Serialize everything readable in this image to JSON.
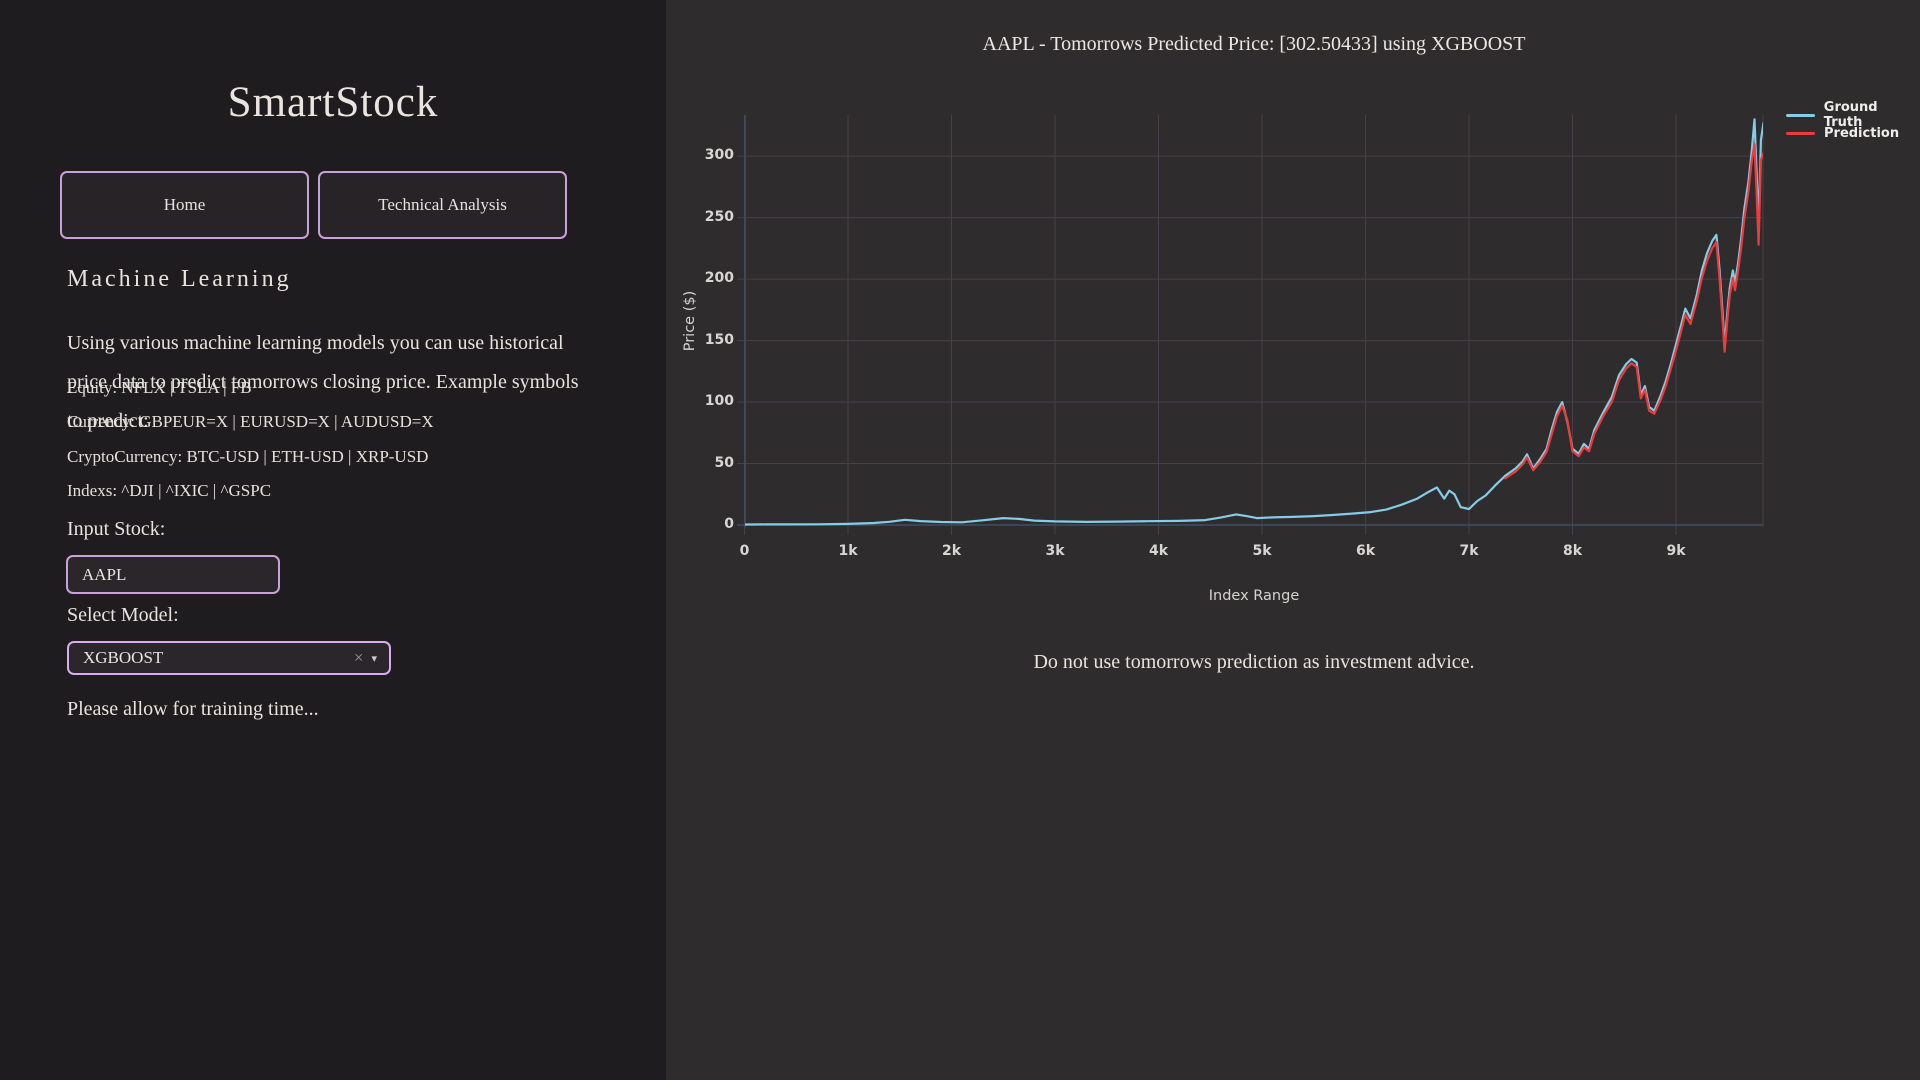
{
  "sidebar": {
    "title": "SmartStock",
    "nav": [
      {
        "label": "Home"
      },
      {
        "label": "Technical Analysis"
      }
    ],
    "section_heading": "Machine Learning",
    "description_lines": [
      "Using various machine learning models you can use historical",
      "price data to predict tomorrows closing price. Example symbols",
      "to predict:"
    ],
    "examples": [
      "Equity: NFLX | TSLA | FB",
      "Currency: GBPEUR=X | EURUSD=X | AUDUSD=X",
      "CryptoCurrency: BTC-USD | ETH-USD | XRP-USD",
      "Indexs: ^DJI | ^IXIC | ^GSPC"
    ],
    "input_stock_label": "Input Stock:",
    "input_stock_value": "AAPL",
    "select_model_label": "Select Model:",
    "select_model_value": "XGBOOST",
    "clear_icon": "×",
    "dropdown_icon": "▾",
    "training_note": "Please allow for training time..."
  },
  "main": {
    "disclaimer": "Do not use tomorrows prediction as investment advice."
  },
  "colors": {
    "accent_purple": "#c9a1d9",
    "select_accent": "#d8abf2",
    "ground_truth": "#85cce7",
    "prediction": "#ed3b3b",
    "gridline": "#454049",
    "axis_line": "#3f4f63"
  },
  "chart_data": {
    "type": "line",
    "title": "AAPL - Tomorrows Predicted Price: [302.50433] using XGBOOST",
    "xlabel": "Index Range",
    "ylabel": "Price ($)",
    "predicted_price": 302.50433,
    "model": "XGBOOST",
    "symbol": "AAPL",
    "grid": true,
    "legend_position": "top-right",
    "xlim": [
      0,
      9850
    ],
    "ylim": [
      -2,
      333
    ],
    "x_ticks": [
      {
        "value": 0,
        "label": "0"
      },
      {
        "value": 1000,
        "label": "1k"
      },
      {
        "value": 2000,
        "label": "2k"
      },
      {
        "value": 3000,
        "label": "3k"
      },
      {
        "value": 4000,
        "label": "4k"
      },
      {
        "value": 5000,
        "label": "5k"
      },
      {
        "value": 6000,
        "label": "6k"
      },
      {
        "value": 7000,
        "label": "7k"
      },
      {
        "value": 8000,
        "label": "8k"
      },
      {
        "value": 9000,
        "label": "9k"
      }
    ],
    "y_ticks": [
      {
        "value": 0,
        "label": "0"
      },
      {
        "value": 50,
        "label": "50"
      },
      {
        "value": 100,
        "label": "100"
      },
      {
        "value": 150,
        "label": "150"
      },
      {
        "value": 200,
        "label": "200"
      },
      {
        "value": 250,
        "label": "250"
      },
      {
        "value": 300,
        "label": "300"
      }
    ],
    "series": [
      {
        "name": "Ground Truth",
        "color": "#85cce7",
        "points": [
          [
            0,
            0.4
          ],
          [
            200,
            0.45
          ],
          [
            400,
            0.5
          ],
          [
            700,
            0.6
          ],
          [
            1000,
            0.9
          ],
          [
            1250,
            1.6
          ],
          [
            1400,
            2.6
          ],
          [
            1550,
            4.2
          ],
          [
            1700,
            3.2
          ],
          [
            1900,
            2.4
          ],
          [
            2100,
            2.2
          ],
          [
            2300,
            3.8
          ],
          [
            2500,
            5.6
          ],
          [
            2650,
            5.0
          ],
          [
            2800,
            3.6
          ],
          [
            3000,
            2.9
          ],
          [
            3300,
            2.5
          ],
          [
            3600,
            2.8
          ],
          [
            3900,
            3.1
          ],
          [
            4200,
            3.3
          ],
          [
            4450,
            4.0
          ],
          [
            4600,
            6.0
          ],
          [
            4750,
            8.6
          ],
          [
            4850,
            7.2
          ],
          [
            4950,
            5.6
          ],
          [
            5100,
            6.2
          ],
          [
            5300,
            6.6
          ],
          [
            5500,
            7.2
          ],
          [
            5700,
            8.2
          ],
          [
            5900,
            9.4
          ],
          [
            6050,
            10.5
          ],
          [
            6200,
            12.5
          ],
          [
            6350,
            16.5
          ],
          [
            6500,
            21.5
          ],
          [
            6600,
            26.5
          ],
          [
            6690,
            30.5
          ],
          [
            6760,
            21.5
          ],
          [
            6810,
            28
          ],
          [
            6860,
            25
          ],
          [
            6920,
            14.5
          ],
          [
            7000,
            13
          ],
          [
            7080,
            19.5
          ],
          [
            7160,
            24
          ],
          [
            7250,
            32
          ],
          [
            7350,
            40
          ],
          [
            7450,
            46
          ],
          [
            7520,
            52
          ],
          [
            7560,
            57.5
          ],
          [
            7620,
            46
          ],
          [
            7690,
            54
          ],
          [
            7750,
            62
          ],
          [
            7800,
            78
          ],
          [
            7850,
            92
          ],
          [
            7900,
            100
          ],
          [
            7950,
            84
          ],
          [
            8000,
            62
          ],
          [
            8060,
            58
          ],
          [
            8110,
            66
          ],
          [
            8160,
            62
          ],
          [
            8210,
            77
          ],
          [
            8300,
            92
          ],
          [
            8380,
            104
          ],
          [
            8450,
            122
          ],
          [
            8520,
            131
          ],
          [
            8570,
            135
          ],
          [
            8620,
            132
          ],
          [
            8660,
            106
          ],
          [
            8700,
            113
          ],
          [
            8740,
            96
          ],
          [
            8790,
            93
          ],
          [
            8850,
            105
          ],
          [
            8900,
            117
          ],
          [
            8950,
            131
          ],
          [
            9000,
            147
          ],
          [
            9050,
            163
          ],
          [
            9090,
            176
          ],
          [
            9140,
            168
          ],
          [
            9200,
            187
          ],
          [
            9250,
            207
          ],
          [
            9300,
            221
          ],
          [
            9350,
            231
          ],
          [
            9390,
            236
          ],
          [
            9420,
            208
          ],
          [
            9450,
            172
          ],
          [
            9470,
            147
          ],
          [
            9500,
            177
          ],
          [
            9520,
            193
          ],
          [
            9550,
            207
          ],
          [
            9570,
            197
          ],
          [
            9600,
            213
          ],
          [
            9630,
            233
          ],
          [
            9660,
            257
          ],
          [
            9700,
            279
          ],
          [
            9730,
            303
          ],
          [
            9758,
            330
          ],
          [
            9778,
            289
          ],
          [
            9798,
            243
          ],
          [
            9820,
            313
          ],
          [
            9845,
            327
          ]
        ]
      },
      {
        "name": "Prediction",
        "color": "#ed3b3b",
        "points": [
          [
            7350,
            38
          ],
          [
            7450,
            43.5
          ],
          [
            7520,
            49.5
          ],
          [
            7560,
            55
          ],
          [
            7620,
            44.5
          ],
          [
            7690,
            51.5
          ],
          [
            7750,
            59.5
          ],
          [
            7800,
            74
          ],
          [
            7850,
            88.5
          ],
          [
            7900,
            97
          ],
          [
            7950,
            85.5
          ],
          [
            8000,
            60
          ],
          [
            8060,
            56
          ],
          [
            8110,
            63
          ],
          [
            8160,
            60
          ],
          [
            8210,
            74
          ],
          [
            8300,
            89
          ],
          [
            8380,
            100
          ],
          [
            8450,
            118
          ],
          [
            8520,
            127.5
          ],
          [
            8570,
            131.5
          ],
          [
            8620,
            128.5
          ],
          [
            8660,
            103
          ],
          [
            8700,
            110
          ],
          [
            8740,
            93
          ],
          [
            8790,
            90.5
          ],
          [
            8850,
            101.5
          ],
          [
            8900,
            113
          ],
          [
            8950,
            127
          ],
          [
            9000,
            142
          ],
          [
            9050,
            158
          ],
          [
            9090,
            171
          ],
          [
            9140,
            163.5
          ],
          [
            9200,
            182
          ],
          [
            9250,
            201
          ],
          [
            9300,
            215
          ],
          [
            9350,
            225
          ],
          [
            9390,
            230
          ],
          [
            9420,
            201
          ],
          [
            9450,
            166
          ],
          [
            9470,
            141
          ],
          [
            9500,
            171
          ],
          [
            9520,
            187
          ],
          [
            9550,
            201
          ],
          [
            9570,
            191
          ],
          [
            9600,
            207
          ],
          [
            9630,
            226
          ],
          [
            9660,
            249
          ],
          [
            9700,
            271
          ],
          [
            9730,
            295
          ],
          [
            9758,
            310
          ],
          [
            9778,
            272
          ],
          [
            9798,
            228
          ],
          [
            9820,
            297
          ],
          [
            9845,
            302.5
          ]
        ]
      }
    ]
  }
}
